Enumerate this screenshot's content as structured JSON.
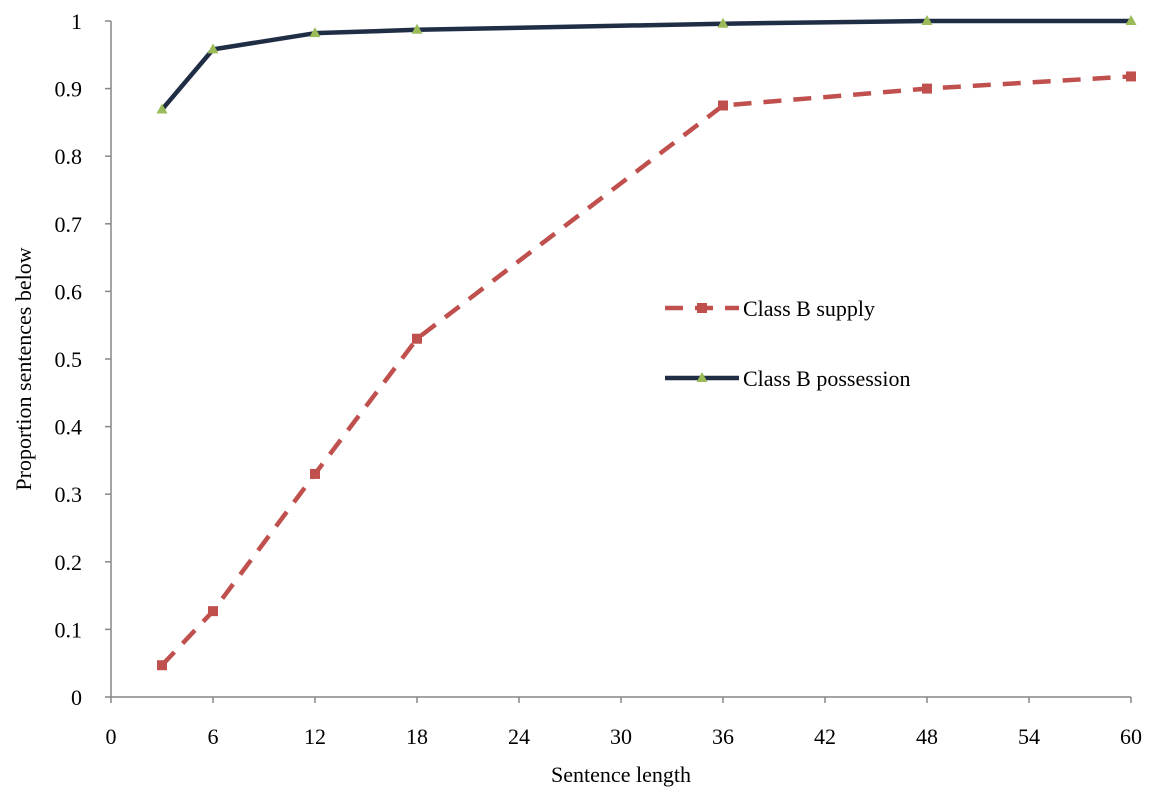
{
  "chart_data": {
    "type": "line",
    "xlabel": "Sentence length",
    "ylabel": "Proportion sentences below",
    "xlim": [
      0,
      60
    ],
    "ylim": [
      0,
      1
    ],
    "x_ticks": [
      "0",
      "6",
      "12",
      "18",
      "24",
      "30",
      "36",
      "42",
      "48",
      "54",
      "60"
    ],
    "y_ticks": [
      "0",
      "0.1",
      "0.2",
      "0.3",
      "0.4",
      "0.5",
      "0.6",
      "0.7",
      "0.8",
      "0.9",
      "1"
    ],
    "grid": false,
    "legend_position": "center-right",
    "series": [
      {
        "name": "Class B supply",
        "color": "#c0504d",
        "line_style": "dashed",
        "marker": "square",
        "x": [
          3,
          6,
          12,
          18,
          36,
          48,
          60
        ],
        "y": [
          0.047,
          0.127,
          0.33,
          0.53,
          0.875,
          0.9,
          0.918
        ]
      },
      {
        "name": "Class B possession",
        "color": "#1f2d45",
        "marker_color": "#9bbb59",
        "line_style": "solid",
        "marker": "triangle",
        "x": [
          3,
          6,
          12,
          18,
          36,
          48,
          60
        ],
        "y": [
          0.869,
          0.958,
          0.982,
          0.987,
          0.996,
          1.0,
          1.0
        ]
      }
    ]
  }
}
